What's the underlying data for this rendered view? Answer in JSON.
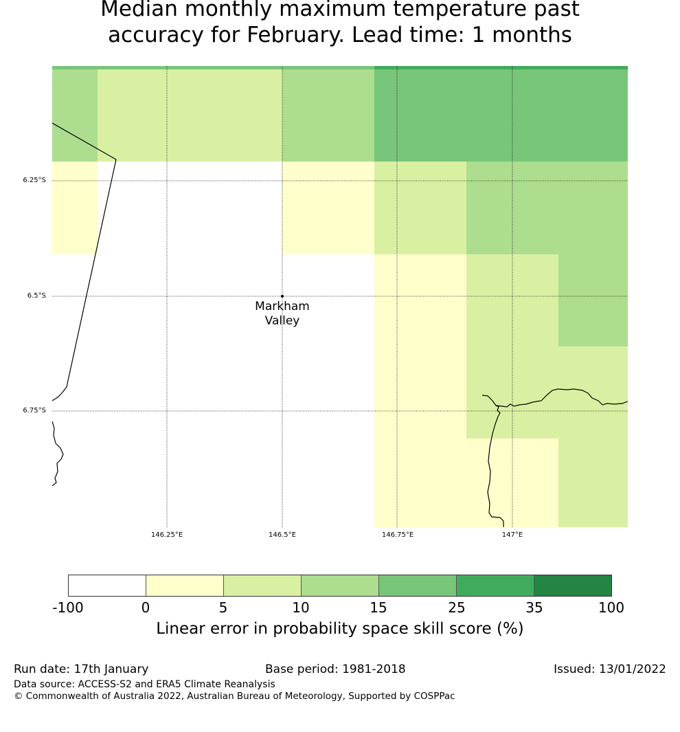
{
  "title": {
    "line1": "Median monthly maximum temperature past",
    "line2": "accuracy for February. Lead time: 1 months"
  },
  "map": {
    "lat_labels": [
      "6.25°S",
      "6.5°S",
      "6.75°S"
    ],
    "lon_labels": [
      "146.25°E",
      "146.5°E",
      "146.75°E",
      "147°E"
    ],
    "place": {
      "name_line1": "Markham",
      "name_line2": "Valley"
    },
    "cell_categories": "skill score bins per grid cell"
  },
  "colorbar": {
    "ticks": [
      "-100",
      "0",
      "5",
      "10",
      "15",
      "25",
      "35",
      "100"
    ],
    "colors": [
      "#ffffff",
      "#ffffcc",
      "#d9f0a3",
      "#addd8e",
      "#78c679",
      "#41ab5d",
      "#238443"
    ],
    "label": "Linear error in probability space skill score (%)"
  },
  "footer": {
    "run_date": "Run date: 17th January",
    "base_period": "Base period: 1981-2018",
    "issued": "Issued: 13/01/2022",
    "data_source": "Data source: ACCESS-S2 and ERA5 Climate Reanalysis",
    "copyright": "© Commonwealth of Australia 2022, Australian Bureau of Meteorology, Supported by COSPPac"
  }
}
